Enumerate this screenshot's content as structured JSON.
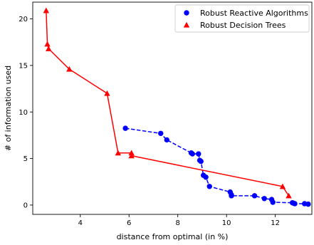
{
  "chart_data": {
    "type": "scatter",
    "xlabel": "distance from optimal (in %)",
    "ylabel": "# of information used",
    "xlim": [
      2.05,
      13.5
    ],
    "ylim": [
      -1.0,
      21.8
    ],
    "xticks": [
      "4",
      "6",
      "8",
      "10",
      "12"
    ],
    "yticks": [
      "0",
      "5",
      "10",
      "15",
      "20"
    ],
    "xtick_values": [
      4,
      6,
      8,
      10,
      12
    ],
    "ytick_values": [
      0,
      5,
      10,
      15,
      20
    ],
    "grid": false,
    "legend_position": "top-right",
    "series": [
      {
        "name": "Robust Reactive Algorithms",
        "color": "#0000ff",
        "marker": "circle",
        "line_style": "dashed",
        "points": [
          [
            5.85,
            8.25
          ],
          [
            7.3,
            7.7
          ],
          [
            7.55,
            7.0
          ],
          [
            8.55,
            5.6
          ],
          [
            8.6,
            5.5
          ],
          [
            8.85,
            5.5
          ],
          [
            8.9,
            4.8
          ],
          [
            8.95,
            4.7
          ],
          [
            9.05,
            3.2
          ],
          [
            9.15,
            3.0
          ],
          [
            9.3,
            2.0
          ],
          [
            10.15,
            1.4
          ],
          [
            10.2,
            1.1
          ],
          [
            10.2,
            1.0
          ],
          [
            11.15,
            1.0
          ],
          [
            11.55,
            0.7
          ],
          [
            11.85,
            0.6
          ],
          [
            11.9,
            0.3
          ],
          [
            12.7,
            0.25
          ],
          [
            12.75,
            0.2
          ],
          [
            12.8,
            0.15
          ],
          [
            13.2,
            0.15
          ],
          [
            13.35,
            0.1
          ]
        ]
      },
      {
        "name": "Robust Decision Trees",
        "color": "#ff0000",
        "marker": "triangle",
        "line_style": "solid",
        "points": [
          [
            2.6,
            20.9
          ],
          [
            2.65,
            17.3
          ],
          [
            2.7,
            16.8
          ],
          [
            3.55,
            14.6
          ],
          [
            5.1,
            12.0
          ],
          [
            5.55,
            5.6
          ],
          [
            6.1,
            5.6
          ],
          [
            6.1,
            5.3
          ],
          [
            12.3,
            2.0
          ],
          [
            12.55,
            1.0
          ]
        ]
      }
    ]
  }
}
